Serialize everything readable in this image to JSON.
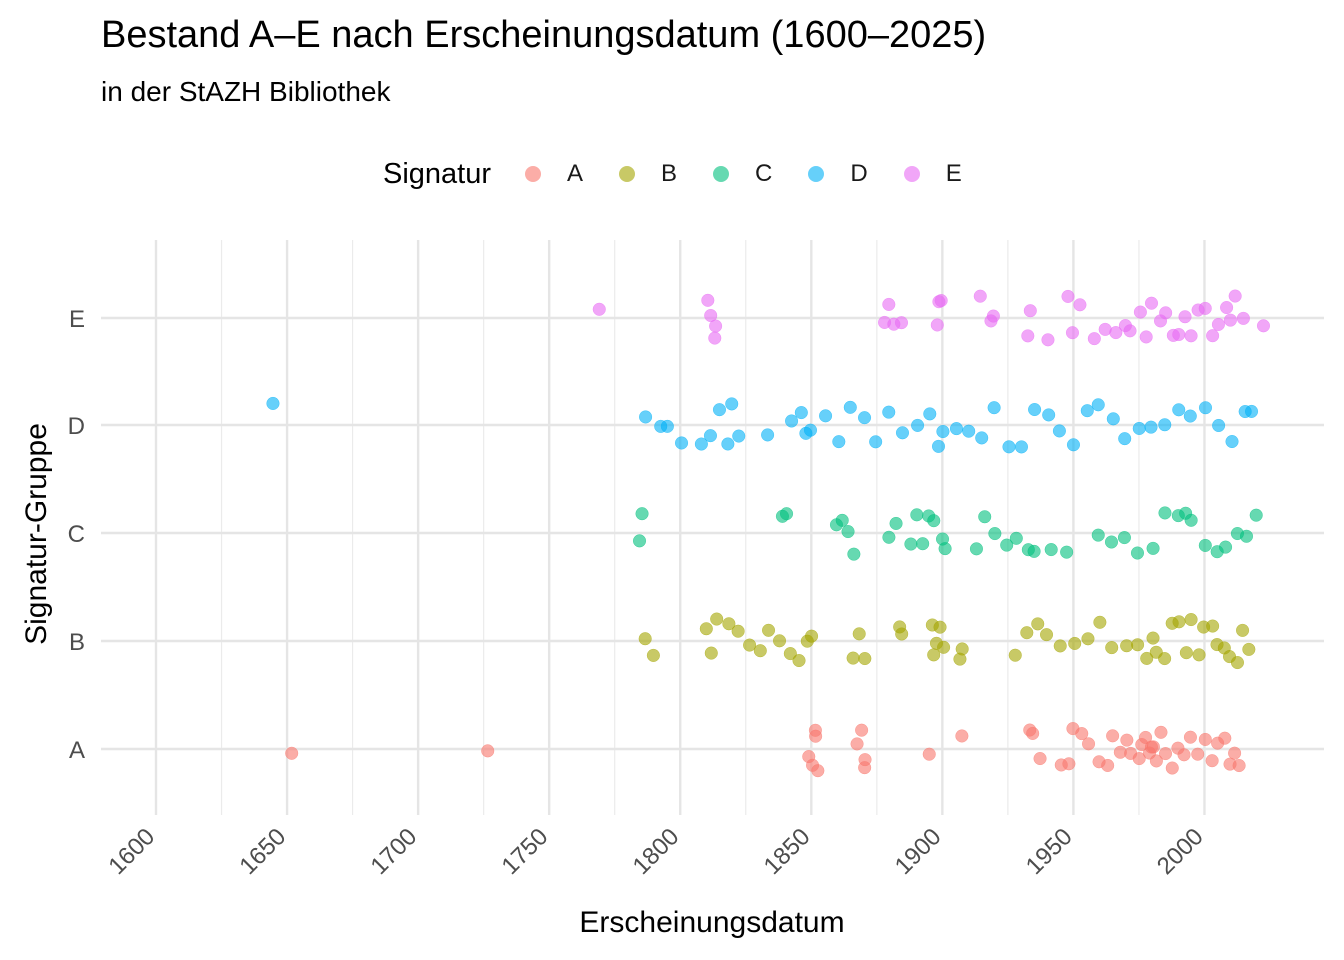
{
  "chart_data": {
    "type": "scatter",
    "title": "Bestand A–E nach Erscheinungsdatum (1600–2025)",
    "subtitle": "in der StAZH Bibliothek",
    "xlabel": "Erscheinungsdatum",
    "ylabel": "Signatur-Gruppe",
    "xlim": [
      1600,
      2025
    ],
    "x_ticks": [
      "1600",
      "1650",
      "1700",
      "1750",
      "1800",
      "1850",
      "1900",
      "1950",
      "2000"
    ],
    "y_categories": [
      "A",
      "B",
      "C",
      "D",
      "E"
    ],
    "grid": true,
    "legend": {
      "title": "Signatur",
      "position": "top",
      "entries": [
        "A",
        "B",
        "C",
        "D",
        "E"
      ]
    },
    "colors": {
      "A": "#F8766D",
      "B": "#A3A500",
      "C": "#00BF7D",
      "D": "#00B0F6",
      "E": "#E76BF3"
    },
    "series": [
      {
        "name": "A",
        "x": [
          1652,
          1726,
          1849,
          1850,
          1851,
          1852,
          1853,
          1868,
          1869,
          1870,
          1871,
          1895,
          1907,
          1933,
          1935,
          1937,
          1945,
          1948,
          1950,
          1953,
          1956,
          1960,
          1963,
          1965,
          1968,
          1970,
          1972,
          1975,
          1976,
          1978,
          1979,
          1980,
          1981,
          1982,
          1983,
          1985,
          1988,
          1990,
          1992,
          1995,
          1998,
          2000,
          2003,
          2005,
          2008,
          2010,
          2012,
          2013
        ],
        "y": [
          "A",
          "A",
          "A",
          "A",
          "A",
          "A",
          "A",
          "A",
          "A",
          "A",
          "A",
          "A",
          "A",
          "A",
          "A",
          "A",
          "A",
          "A",
          "A",
          "A",
          "A",
          "A",
          "A",
          "A",
          "A",
          "A",
          "A",
          "A",
          "A",
          "A",
          "A",
          "A",
          "A",
          "A",
          "A",
          "A",
          "A",
          "A",
          "A",
          "A",
          "A",
          "A",
          "A",
          "A",
          "A",
          "A",
          "A",
          "A"
        ]
      },
      {
        "name": "B",
        "x": [
          1787,
          1790,
          1810,
          1812,
          1814,
          1818,
          1822,
          1826,
          1830,
          1834,
          1838,
          1842,
          1845,
          1848,
          1850,
          1866,
          1868,
          1870,
          1884,
          1885,
          1896,
          1897,
          1898,
          1899,
          1900,
          1907,
          1908,
          1928,
          1932,
          1936,
          1940,
          1945,
          1950,
          1955,
          1960,
          1965,
          1970,
          1975,
          1978,
          1980,
          1982,
          1985,
          1988,
          1990,
          1993,
          1995,
          1998,
          2000,
          2003,
          2005,
          2008,
          2010,
          2013,
          2015,
          2017
        ],
        "y": [
          "B",
          "B",
          "B",
          "B",
          "B",
          "B",
          "B",
          "B",
          "B",
          "B",
          "B",
          "B",
          "B",
          "B",
          "B",
          "B",
          "B",
          "B",
          "B",
          "B",
          "B",
          "B",
          "B",
          "B",
          "B",
          "B",
          "B",
          "B",
          "B",
          "B",
          "B",
          "B",
          "B",
          "B",
          "B",
          "B",
          "B",
          "B",
          "B",
          "B",
          "B",
          "B",
          "B",
          "B",
          "B",
          "B",
          "B",
          "B",
          "B",
          "B",
          "B",
          "B",
          "B",
          "B",
          "B"
        ]
      },
      {
        "name": "C",
        "x": [
          1785,
          1786,
          1839,
          1840,
          1860,
          1862,
          1864,
          1866,
          1880,
          1882,
          1888,
          1890,
          1893,
          1895,
          1897,
          1900,
          1901,
          1913,
          1916,
          1920,
          1924,
          1928,
          1933,
          1935,
          1941,
          1947,
          1960,
          1965,
          1970,
          1975,
          1980,
          1985,
          1990,
          1993,
          1995,
          2000,
          2005,
          2008,
          2013,
          2016,
          2020
        ],
        "y": [
          "C",
          "C",
          "C",
          "C",
          "C",
          "C",
          "C",
          "C",
          "C",
          "C",
          "C",
          "C",
          "C",
          "C",
          "C",
          "C",
          "C",
          "C",
          "C",
          "C",
          "C",
          "C",
          "C",
          "C",
          "C",
          "C",
          "C",
          "C",
          "C",
          "C",
          "C",
          "C",
          "C",
          "C",
          "C",
          "C",
          "C",
          "C",
          "C",
          "C",
          "C"
        ]
      },
      {
        "name": "D",
        "x": [
          1645,
          1787,
          1792,
          1795,
          1800,
          1808,
          1812,
          1815,
          1818,
          1820,
          1822,
          1833,
          1843,
          1846,
          1848,
          1850,
          1856,
          1860,
          1865,
          1870,
          1875,
          1880,
          1885,
          1890,
          1895,
          1898,
          1900,
          1905,
          1910,
          1915,
          1920,
          1925,
          1930,
          1935,
          1940,
          1945,
          1950,
          1955,
          1960,
          1965,
          1970,
          1975,
          1980,
          1985,
          1990,
          1995,
          2000,
          2005,
          2010,
          2015,
          2018
        ],
        "y": [
          "D",
          "D",
          "D",
          "D",
          "D",
          "D",
          "D",
          "D",
          "D",
          "D",
          "D",
          "D",
          "D",
          "D",
          "D",
          "D",
          "D",
          "D",
          "D",
          "D",
          "D",
          "D",
          "D",
          "D",
          "D",
          "D",
          "D",
          "D",
          "D",
          "D",
          "D",
          "D",
          "D",
          "D",
          "D",
          "D",
          "D",
          "D",
          "D",
          "D",
          "D",
          "D",
          "D",
          "D",
          "D",
          "D",
          "D",
          "D",
          "D",
          "D",
          "D"
        ]
      },
      {
        "name": "E",
        "x": [
          1769,
          1811,
          1812,
          1813,
          1814,
          1878,
          1880,
          1882,
          1884,
          1898,
          1899,
          1900,
          1915,
          1919,
          1920,
          1933,
          1934,
          1940,
          1948,
          1950,
          1952,
          1958,
          1962,
          1966,
          1970,
          1972,
          1975,
          1978,
          1980,
          1983,
          1985,
          1988,
          1990,
          1993,
          1995,
          1998,
          2000,
          2003,
          2005,
          2008,
          2010,
          2012,
          2015,
          2022
        ],
        "y": [
          "E",
          "E",
          "E",
          "E",
          "E",
          "E",
          "E",
          "E",
          "E",
          "E",
          "E",
          "E",
          "E",
          "E",
          "E",
          "E",
          "E",
          "E",
          "E",
          "E",
          "E",
          "E",
          "E",
          "E",
          "E",
          "E",
          "E",
          "E",
          "E",
          "E",
          "E",
          "E",
          "E",
          "E",
          "E",
          "E",
          "E",
          "E",
          "E",
          "E",
          "E",
          "E",
          "E",
          "E"
        ]
      }
    ]
  }
}
